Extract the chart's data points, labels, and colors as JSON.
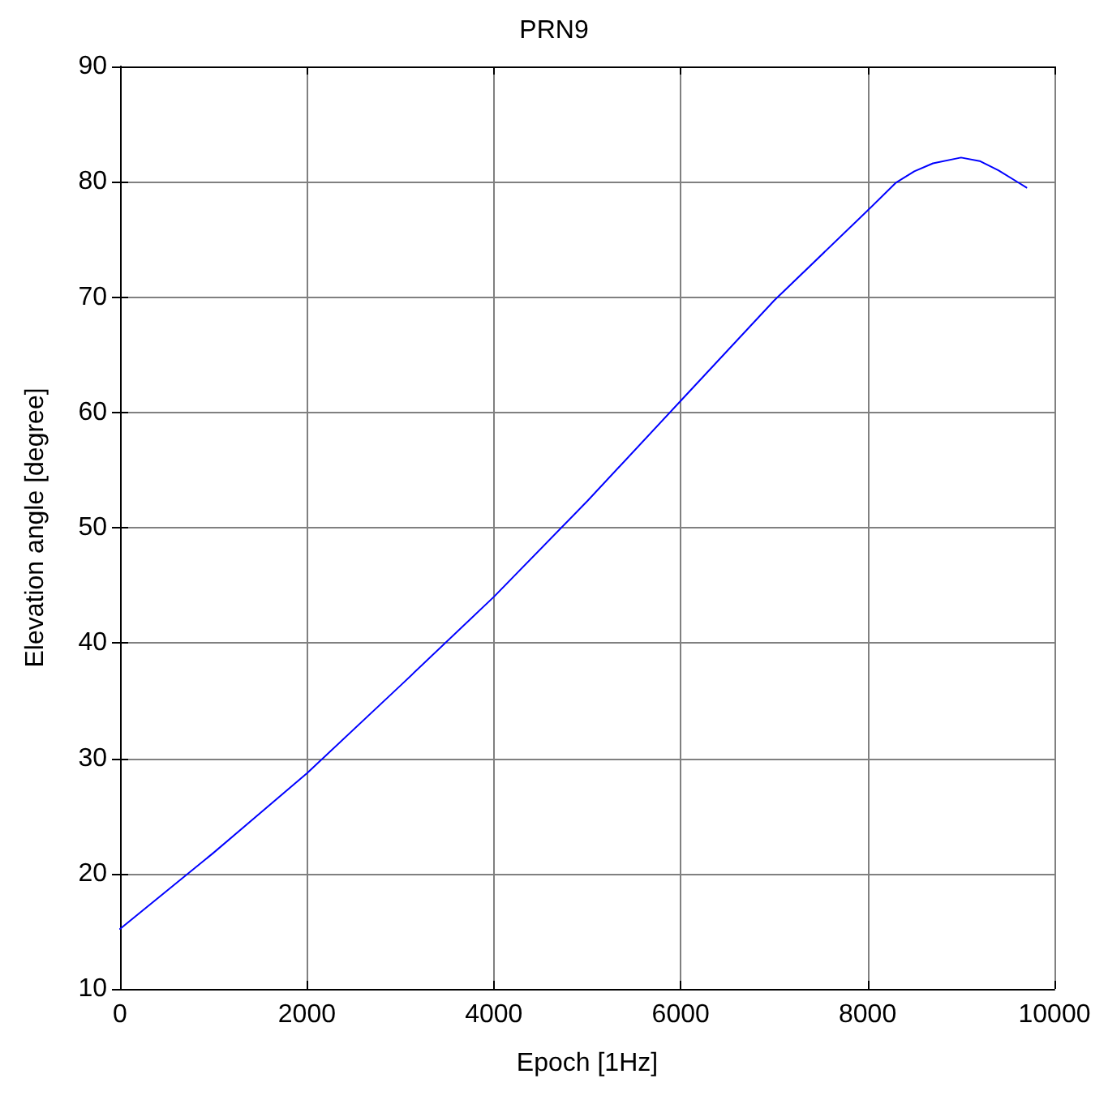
{
  "chart_data": {
    "type": "line",
    "title": "PRN9",
    "xlabel": "Epoch [1Hz]",
    "ylabel": "Elevation angle [degree]",
    "x": [
      0,
      1000,
      2000,
      3000,
      4000,
      5000,
      6000,
      7000,
      8000,
      8300,
      8500,
      8700,
      9000,
      9200,
      9400,
      9600,
      9700
    ],
    "series": [
      {
        "color": "#0000ff",
        "values": [
          15.2,
          21.8,
          28.7,
          36.3,
          44,
          52.3,
          61,
          69.7,
          77.5,
          79.9,
          80.9,
          81.6,
          82.1,
          81.8,
          81,
          80,
          79.5
        ]
      }
    ],
    "xlim": [
      0,
      10000
    ],
    "xticks": [
      0,
      2000,
      4000,
      6000,
      8000,
      10000
    ],
    "ylim": [
      10,
      90
    ],
    "yticks": [
      10,
      20,
      30,
      40,
      50,
      60,
      70,
      80,
      90
    ],
    "grid": true,
    "marker": "none",
    "line_style": "solid"
  }
}
